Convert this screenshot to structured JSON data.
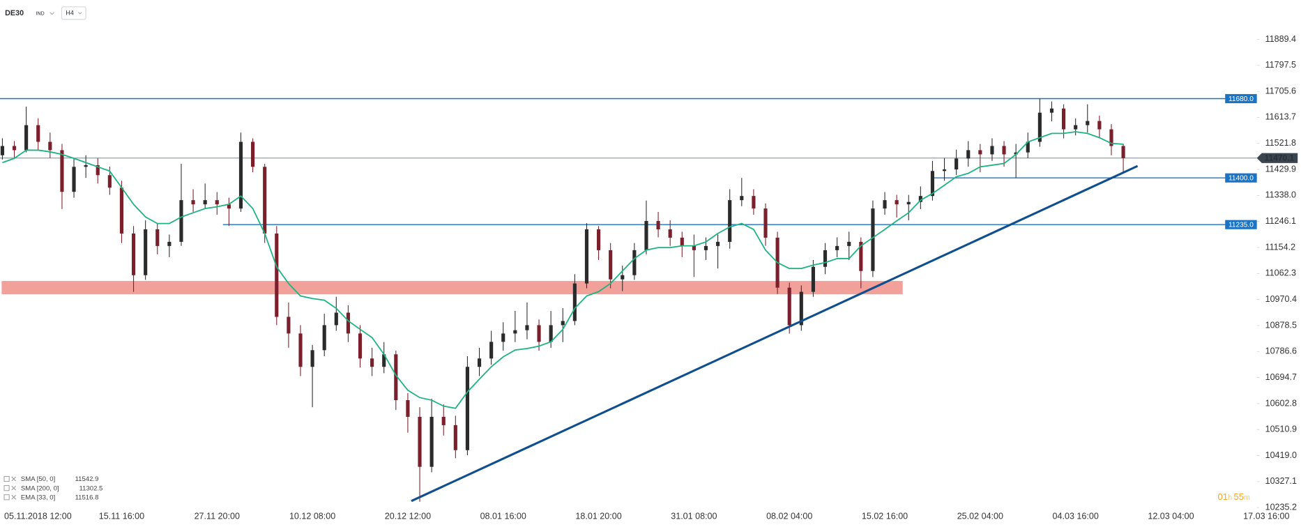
{
  "header": {
    "symbol": "DE30",
    "market": "IND",
    "timeframe": "H4"
  },
  "countdown": {
    "hours": "01",
    "h": "h",
    "minutes": "55",
    "m": "m"
  },
  "chart_data": {
    "type": "candlestick",
    "up_color": "#2b2b2b",
    "down_color": "#7a1f2b",
    "ohlc": [
      [
        11480.0,
        11540.0,
        11465.0,
        11512.7
      ],
      [
        11512.7,
        11530.0,
        11470.0,
        11498.0
      ],
      [
        11498.0,
        11651.6,
        11490.0,
        11586.3
      ],
      [
        11586.3,
        11610.0,
        11500.0,
        11527.4
      ],
      [
        11527.4,
        11560.0,
        11470.0,
        11498.0
      ],
      [
        11498.0,
        11520.0,
        11290.0,
        11350.8
      ],
      [
        11350.8,
        11470.0,
        11330.0,
        11439.1
      ],
      [
        11439.1,
        11480.0,
        11400.0,
        11445.0
      ],
      [
        11445.0,
        11470.0,
        11380.0,
        11409.7
      ],
      [
        11409.7,
        11440.0,
        11340.0,
        11365.5
      ],
      [
        11365.5,
        11390.0,
        11170.0,
        11203.6
      ],
      [
        11203.6,
        11230.0,
        10997.6,
        11056.4
      ],
      [
        11056.4,
        11250.0,
        11040.0,
        11218.3
      ],
      [
        11218.3,
        11240.0,
        11130.0,
        11159.5
      ],
      [
        11159.5,
        11200.0,
        11120.0,
        11174.2
      ],
      [
        11174.2,
        11450.0,
        11160.0,
        11321.4
      ],
      [
        11321.4,
        11360.0,
        11280.0,
        11306.6
      ],
      [
        11306.6,
        11380.0,
        11290.0,
        11321.4
      ],
      [
        11321.4,
        11350.0,
        11270.0,
        11306.6
      ],
      [
        11306.6,
        11330.0,
        11230.0,
        11291.9
      ],
      [
        11291.9,
        11560.0,
        11280.0,
        11527.4
      ],
      [
        11527.4,
        11540.0,
        11420.0,
        11439.1
      ],
      [
        11439.1,
        11450.0,
        11170.0,
        11203.6
      ],
      [
        11203.6,
        11230.0,
        10880.0,
        10909.2
      ],
      [
        10909.2,
        10960.0,
        10800.0,
        10850.4
      ],
      [
        10850.4,
        10880.0,
        10700.0,
        10732.6
      ],
      [
        10732.6,
        10810.0,
        10590.0,
        10791.5
      ],
      [
        10791.5,
        10920.0,
        10770.0,
        10879.8
      ],
      [
        10879.8,
        10980.0,
        10860.0,
        10924.0
      ],
      [
        10924.0,
        10950.0,
        10820.0,
        10850.4
      ],
      [
        10850.4,
        10880.0,
        10730.0,
        10762.1
      ],
      [
        10762.1,
        10800.0,
        10700.0,
        10732.6
      ],
      [
        10732.6,
        10820.0,
        10710.0,
        10776.8
      ],
      [
        10776.8,
        10790.0,
        10580.0,
        10614.9
      ],
      [
        10614.9,
        10640.0,
        10500.0,
        10556.0
      ],
      [
        10556.0,
        10590.0,
        10256.0,
        10379.4
      ],
      [
        10379.4,
        10620.0,
        10360.0,
        10556.0
      ],
      [
        10556.0,
        10600.0,
        10490.0,
        10526.6
      ],
      [
        10526.6,
        10560.0,
        10410.0,
        10438.3
      ],
      [
        10438.3,
        10770.0,
        10420.0,
        10732.6
      ],
      [
        10732.6,
        10800.0,
        10700.0,
        10762.1
      ],
      [
        10762.1,
        10860.0,
        10740.0,
        10820.9
      ],
      [
        10820.9,
        10890.0,
        10790.0,
        10850.4
      ],
      [
        10850.4,
        10930.0,
        10820.0,
        10862.0
      ],
      [
        10862.0,
        10960.0,
        10830.0,
        10879.8
      ],
      [
        10879.8,
        10900.0,
        10790.0,
        10820.9
      ],
      [
        10820.9,
        10930.0,
        10800.0,
        10879.8
      ],
      [
        10879.8,
        10940.0,
        10820.0,
        10894.5
      ],
      [
        10894.5,
        11060.0,
        10880.0,
        11027.0
      ],
      [
        11027.0,
        11240.0,
        11010.0,
        11218.3
      ],
      [
        11218.3,
        11230.0,
        11110.0,
        11144.7
      ],
      [
        11144.7,
        11170.0,
        11010.0,
        11041.7
      ],
      [
        11041.7,
        11090.0,
        11000.0,
        11056.4
      ],
      [
        11056.4,
        11170.0,
        11040.0,
        11144.7
      ],
      [
        11144.7,
        11320.0,
        11130.0,
        11247.8
      ],
      [
        11247.8,
        11280.0,
        11190.0,
        11218.3
      ],
      [
        11218.3,
        11250.0,
        11160.0,
        11188.9
      ],
      [
        11188.9,
        11210.0,
        11120.0,
        11159.5
      ],
      [
        11159.5,
        11200.0,
        11050.0,
        11144.7
      ],
      [
        11144.7,
        11190.0,
        11110.0,
        11159.5
      ],
      [
        11159.5,
        11200.0,
        11080.0,
        11174.2
      ],
      [
        11174.2,
        11360.0,
        11150.0,
        11321.4
      ],
      [
        11321.4,
        11400.0,
        11300.0,
        11336.1
      ],
      [
        11336.1,
        11360.0,
        11270.0,
        11291.9
      ],
      [
        11291.9,
        11310.0,
        11160.0,
        11188.9
      ],
      [
        11188.9,
        11210.0,
        10990.0,
        11012.3
      ],
      [
        11012.3,
        11030.0,
        10850.0,
        10879.8
      ],
      [
        10879.8,
        11020.0,
        10860.0,
        10997.6
      ],
      [
        10997.6,
        11110.0,
        10980.0,
        11085.9
      ],
      [
        11085.9,
        11170.0,
        11060.0,
        11144.7
      ],
      [
        11144.7,
        11190.0,
        11120.0,
        11159.5
      ],
      [
        11159.5,
        11210.0,
        11110.0,
        11174.2
      ],
      [
        11174.2,
        11190.0,
        11010.0,
        11071.1
      ],
      [
        11071.1,
        11320.0,
        11050.0,
        11291.9
      ],
      [
        11291.9,
        11350.0,
        11270.0,
        11321.4
      ],
      [
        11321.4,
        11340.0,
        11260.0,
        11306.6
      ],
      [
        11306.6,
        11340.0,
        11250.0,
        11315.0
      ],
      [
        11315.0,
        11370.0,
        11290.0,
        11336.1
      ],
      [
        11336.1,
        11460.0,
        11320.0,
        11424.4
      ],
      [
        11424.4,
        11470.0,
        11390.0,
        11430.0
      ],
      [
        11430.0,
        11500.0,
        11410.0,
        11468.5
      ],
      [
        11468.5,
        11530.0,
        11440.0,
        11498.0
      ],
      [
        11498.0,
        11520.0,
        11420.0,
        11483.2
      ],
      [
        11483.2,
        11540.0,
        11460.0,
        11512.7
      ],
      [
        11512.7,
        11530.0,
        11440.0,
        11483.2
      ],
      [
        11483.2,
        11520.0,
        11400.0,
        11490.0
      ],
      [
        11490.0,
        11560.0,
        11470.0,
        11527.4
      ],
      [
        11527.4,
        11680.0,
        11510.0,
        11630.4
      ],
      [
        11630.4,
        11670.0,
        11600.0,
        11645.1
      ],
      [
        11645.1,
        11660.0,
        11540.0,
        11571.6
      ],
      [
        11571.6,
        11610.0,
        11550.0,
        11586.3
      ],
      [
        11586.3,
        11660.0,
        11560.0,
        11601.0
      ],
      [
        11601.0,
        11620.0,
        11540.0,
        11571.6
      ],
      [
        11571.6,
        11590.0,
        11480.0,
        11512.7
      ],
      [
        11512.7,
        11520.0,
        11420.0,
        11470.1
      ]
    ],
    "line": {
      "color": "#1db380",
      "values": [
        11454,
        11469,
        11498,
        11498,
        11492,
        11483,
        11469,
        11454,
        11439,
        11424,
        11366,
        11307,
        11262,
        11239,
        11239,
        11262,
        11277,
        11292,
        11298,
        11307,
        11336,
        11292,
        11204,
        11086,
        11027,
        10983,
        10974,
        10968,
        10939,
        10895,
        10865,
        10836,
        10777,
        10703,
        10650,
        10624,
        10615,
        10594,
        10586,
        10644,
        10689,
        10733,
        10768,
        10792,
        10797,
        10806,
        10821,
        10865,
        10939,
        10983,
        10998,
        11027,
        11071,
        11115,
        11145,
        11154,
        11154,
        11160,
        11160,
        11174,
        11204,
        11227,
        11239,
        11218,
        11145,
        11101,
        11080,
        11080,
        11092,
        11101,
        11115,
        11115,
        11160,
        11189,
        11218,
        11248,
        11277,
        11321,
        11345,
        11374,
        11404,
        11416,
        11439,
        11445,
        11451,
        11483,
        11527,
        11542,
        11557,
        11557,
        11563,
        11557,
        11542,
        11522,
        11519
      ]
    },
    "xlim": [
      -0.2,
      105.2
    ],
    "xticks": [
      {
        "value": 2,
        "label": "05.11.2018  12:00"
      },
      {
        "value": 10,
        "label": "15.11  16:00"
      },
      {
        "value": 18,
        "label": "27.11  20:00"
      },
      {
        "value": 26,
        "label": "10.12  08:00"
      },
      {
        "value": 34,
        "label": "20.12  12:00"
      },
      {
        "value": 42,
        "label": "08.01  16:00"
      },
      {
        "value": 50,
        "label": "18.01  20:00"
      },
      {
        "value": 58,
        "label": "31.01  08:00"
      },
      {
        "value": 66,
        "label": "08.02  04:00"
      },
      {
        "value": 74,
        "label": "15.02  16:00"
      },
      {
        "value": 82,
        "label": "25.02  04:00"
      },
      {
        "value": 90,
        "label": "04.03  16:00"
      },
      {
        "value": 98,
        "label": "12.03  04:00"
      },
      {
        "value": 106,
        "label": "17.03  16:00"
      }
    ],
    "ylim": [
      10217.5,
      11939.5
    ],
    "yticks": [
      11889.4,
      11797.5,
      11705.6,
      11613.7,
      11521.8,
      11429.9,
      {
        "value": 11338,
        "label": "11338.0"
      },
      11246.1,
      11154.2,
      11062.3,
      10970.4,
      10878.5,
      10786.6,
      10694.7,
      10602.8,
      10510.9,
      {
        "value": 10419,
        "label": "10419.0"
      },
      10327.1,
      10235.2
    ],
    "levels": [
      {
        "value": 11680,
        "label": "11680.0"
      },
      {
        "value": 11400,
        "label": "11400.0"
      },
      {
        "value": 11235,
        "label": "11235.0"
      }
    ],
    "level_color": "#1a74c6",
    "zone": {
      "from": 10988.8,
      "to": 11035.9,
      "color": "#f19b95"
    },
    "trendline": {
      "x": [
        34.3,
        95.2
      ],
      "y": [
        10258.7,
        11442.1
      ],
      "color": "#0f4f8f"
    },
    "last_price": 11470.1,
    "indicators": [
      {
        "name": "SMA [50, 0]",
        "value": 11542.9
      },
      {
        "name": "SMA [200, 0]",
        "value": 11302.5
      },
      {
        "name": "EMA [33, 0]",
        "value": 11516.8
      }
    ]
  }
}
